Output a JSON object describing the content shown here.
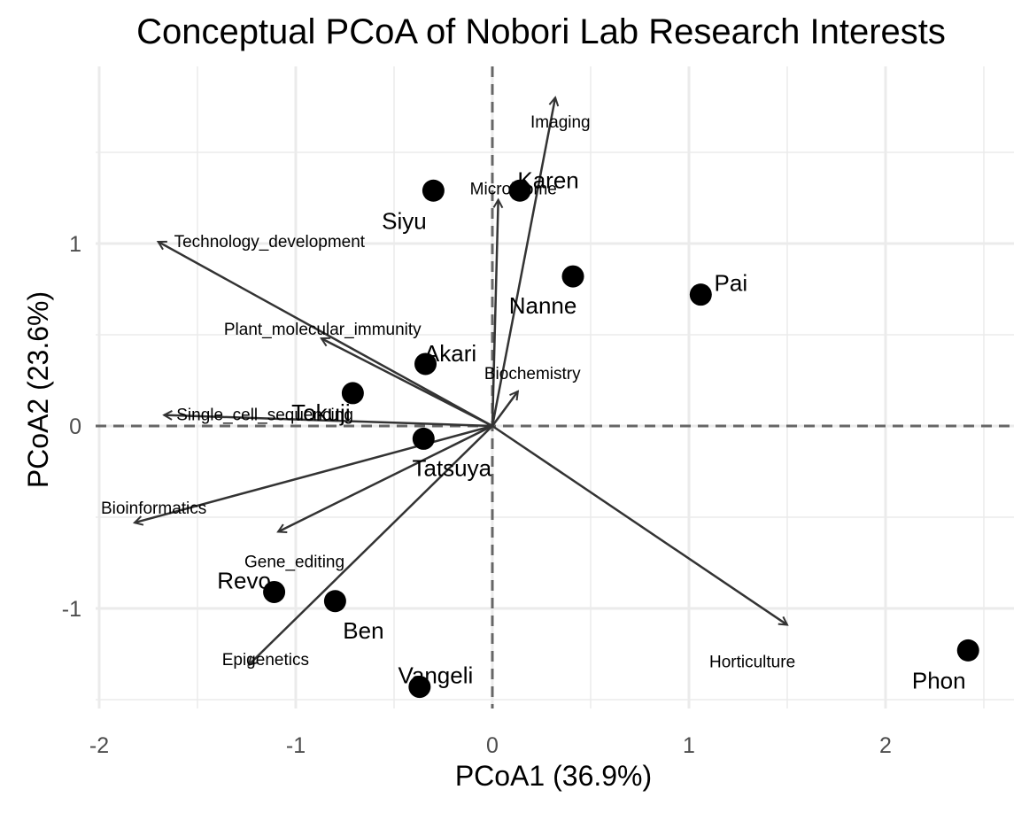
{
  "chart_data": {
    "type": "scatter",
    "title": "Conceptual PCoA of Nobori Lab Research Interests",
    "xlabel": "PCoA1 (36.9%)",
    "ylabel": "PCoA2 (23.6%)",
    "xlim": [
      -2.0,
      2.6
    ],
    "ylim": [
      -1.5,
      1.9
    ],
    "x_ticks": [
      -2,
      -1,
      0,
      1,
      2
    ],
    "x_tick_labels": [
      "-2",
      "-1",
      "0",
      "1",
      "2"
    ],
    "y_ticks": [
      -1,
      0,
      1
    ],
    "y_tick_labels": [
      "-1",
      "0",
      "1"
    ],
    "grid": true,
    "reference_lines": {
      "x": 0,
      "y": 0,
      "style": "dashed"
    },
    "points": [
      {
        "label": "Siyu",
        "x": -0.3,
        "y": 1.29
      },
      {
        "label": "Karen",
        "x": 0.14,
        "y": 1.29
      },
      {
        "label": "Nanne",
        "x": 0.41,
        "y": 0.82
      },
      {
        "label": "Pai",
        "x": 1.06,
        "y": 0.72
      },
      {
        "label": "Akari",
        "x": -0.34,
        "y": 0.34
      },
      {
        "label": "Tokuji",
        "x": -0.71,
        "y": 0.18
      },
      {
        "label": "Tatsuya",
        "x": -0.35,
        "y": -0.07
      },
      {
        "label": "Revo",
        "x": -1.11,
        "y": -0.91
      },
      {
        "label": "Ben",
        "x": -0.8,
        "y": -0.96
      },
      {
        "label": "Vangeli",
        "x": -0.37,
        "y": -1.43
      },
      {
        "label": "Phon",
        "x": 2.42,
        "y": -1.23
      }
    ],
    "vectors": [
      {
        "label": "Imaging",
        "x": 0.32,
        "y": 1.8
      },
      {
        "label": "Microbiome",
        "x": 0.03,
        "y": 1.24
      },
      {
        "label": "Technology_development",
        "x": -1.7,
        "y": 1.01
      },
      {
        "label": "Plant_molecular_immunity",
        "x": -0.87,
        "y": 0.48
      },
      {
        "label": "Biochemistry",
        "x": 0.13,
        "y": 0.19
      },
      {
        "label": "Single_cell_sequencing",
        "x": -1.67,
        "y": 0.06
      },
      {
        "label": "Bioinformatics",
        "x": -1.82,
        "y": -0.53
      },
      {
        "label": "Gene_editing",
        "x": -1.09,
        "y": -0.58
      },
      {
        "label": "Epigenetics",
        "x": -1.24,
        "y": -1.31
      },
      {
        "label": "Horticulture",
        "x": 1.5,
        "y": -1.09
      }
    ]
  }
}
